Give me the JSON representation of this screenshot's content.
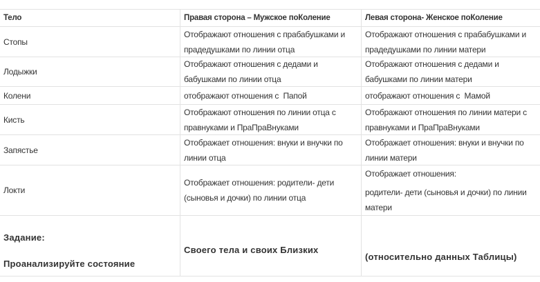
{
  "headers": [
    "Тело",
    "Правая сторона – Мужское поКоление",
    "Левая сторона- Женское поКоление"
  ],
  "rows": [
    {
      "body": "Стопы",
      "right": "Отображают отношения с прабабушками и прадедушками по линии отца",
      "left": "Отображают отношения с прабабушками и прадедушками по линии матери"
    },
    {
      "body": "Лодыжки",
      "right": "Отображают отношения с дедами и бабушками по линии отца",
      "left": "Отображают отношения с дедами и бабушками по линии матери"
    },
    {
      "body": "Колени",
      "right": "отображают отношения с  Папой",
      "left": "отображают отношения с  Мамой"
    },
    {
      "body": "Кисть",
      "right": "Отображают отношения по линии отца с правнуками и ПраПраВнуками",
      "left": "Отображают отношения по линии матери с правнуками и ПраПраВнуками"
    },
    {
      "body": "Запястье",
      "right": "Отображает отношения: внуки и внучки по линии отца",
      "left": "Отображает отношения: внуки и внучки по линии матери"
    },
    {
      "body": "Локти",
      "right": "Отображает отношения: родители- дети (сыновья и дочки) по линии отца",
      "left_line1": "Отображает отношения:",
      "left_line2": "родители- дети (сыновья и дочки) по линии матери"
    }
  ],
  "task": {
    "label": "Задание:",
    "instruction": "Проанализируйте состояние",
    "middle": "Своего тела и своих Близких",
    "right": "(относительно данных Таблицы)"
  }
}
